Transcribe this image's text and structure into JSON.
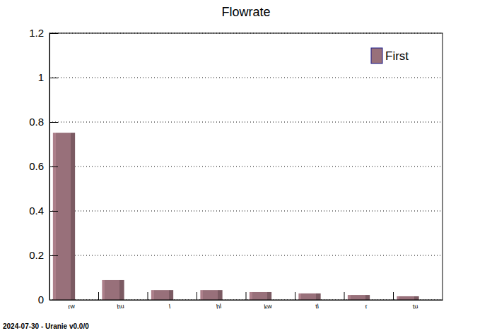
{
  "chart_data": {
    "type": "bar",
    "title": "Flowrate",
    "categories": [
      "rw",
      "hu",
      "l",
      "hl",
      "kw",
      "tl",
      "r",
      "tu"
    ],
    "series": [
      {
        "name": "First",
        "color": "#98707a",
        "values": [
          0.752,
          0.089,
          0.044,
          0.044,
          0.035,
          0.029,
          0.022,
          0.016
        ]
      }
    ],
    "ylim": [
      0,
      1.2
    ],
    "yticks": [
      0,
      0.2,
      0.4,
      0.6,
      0.8,
      1,
      1.2
    ],
    "grid": true,
    "legend": "top-right",
    "annotations": [
      "2024-07-30 - Uranie v0.0/0"
    ]
  }
}
